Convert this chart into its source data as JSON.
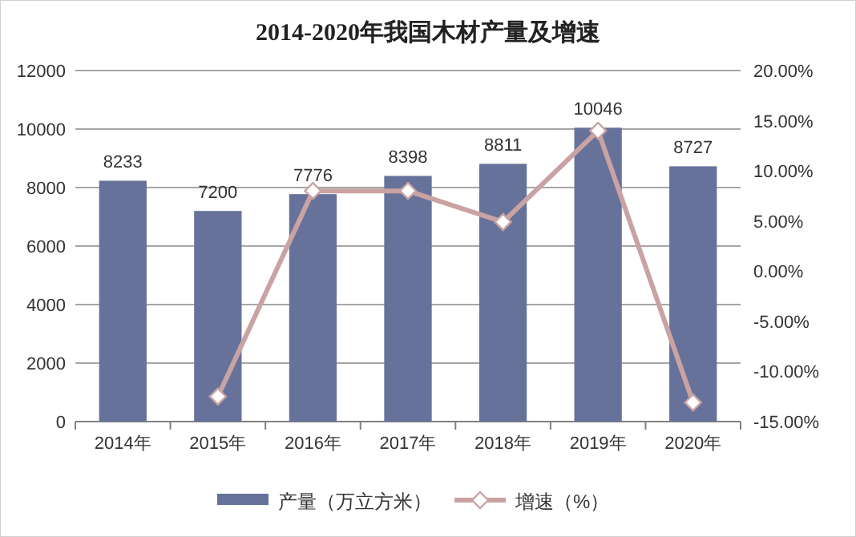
{
  "chart_data": {
    "type": "bar",
    "title": "2014-2020年我国木材产量及增速",
    "categories": [
      "2014年",
      "2015年",
      "2016年",
      "2017年",
      "2018年",
      "2019年",
      "2020年"
    ],
    "series": [
      {
        "name": "产量（万立方米）",
        "color": "#67729a",
        "values": [
          8233,
          7200,
          7776,
          8398,
          8811,
          10046,
          8727
        ],
        "value_labels": [
          "8233",
          "7200",
          "7776",
          "8398",
          "8811",
          "10046",
          "8727"
        ]
      },
      {
        "name": "增速（%）",
        "type": "line",
        "axis": "y2",
        "color": "#c9a3a3",
        "values": [
          null,
          -12.5,
          8,
          8,
          4.9,
          14,
          -13.1
        ]
      }
    ],
    "ylim": [
      0,
      12000
    ],
    "yticks": [
      0,
      2000,
      4000,
      6000,
      8000,
      10000,
      12000
    ],
    "y2lim": [
      -15,
      20
    ],
    "y2ticks": [
      {
        "value": -15,
        "label": "-15.00%"
      },
      {
        "value": -10,
        "label": "-10.00%"
      },
      {
        "value": -5,
        "label": "-5.00%"
      },
      {
        "value": 0,
        "label": "0.00%"
      },
      {
        "value": 5,
        "label": "5.00%"
      },
      {
        "value": 10,
        "label": "10.00%"
      },
      {
        "value": 15,
        "label": "15.00%"
      },
      {
        "value": 20,
        "label": "20.00%"
      }
    ],
    "grid": "y",
    "legend": "bottom",
    "marker": "diamond",
    "line_style": "solid"
  }
}
